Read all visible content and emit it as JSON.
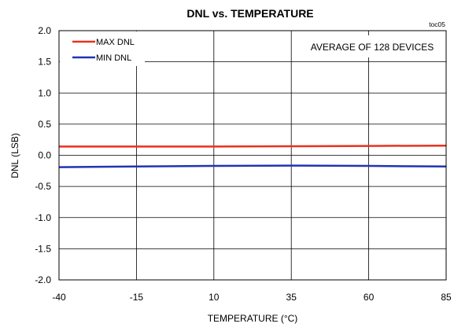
{
  "chart_data": {
    "type": "line",
    "title": "DNL vs. TEMPERATURE",
    "figure_id": "toc05",
    "xlabel": "TEMPERATURE (°C)",
    "ylabel": "DNL  (LSB)",
    "xlim": [
      -40,
      85
    ],
    "ylim": [
      -2.0,
      2.0
    ],
    "x_ticks": [
      -40,
      -15,
      10,
      35,
      60,
      85
    ],
    "x_tick_labels": [
      "-40",
      "-15",
      "10",
      "35",
      "60",
      "85"
    ],
    "y_ticks": [
      2.0,
      1.5,
      1.0,
      0.5,
      0.0,
      -0.5,
      -1.0,
      -1.5,
      -2.0
    ],
    "y_tick_labels": [
      "2.0",
      "1.5",
      "1.0",
      "0.5",
      "0.0",
      "-0.5",
      "-1.0",
      "-1.5",
      "-2.0"
    ],
    "grid": true,
    "legend_placement": "top-left",
    "annotation": "AVERAGE OF 128 DEVICES",
    "x": [
      -40,
      -15,
      10,
      35,
      60,
      85
    ],
    "series": [
      {
        "name": "MAX DNL",
        "color": "#e8321e",
        "values": [
          0.14,
          0.14,
          0.14,
          0.145,
          0.15,
          0.155
        ]
      },
      {
        "name": "MIN DNL",
        "color": "#1f35b3",
        "values": [
          -0.19,
          -0.18,
          -0.17,
          -0.165,
          -0.17,
          -0.18
        ]
      }
    ]
  }
}
